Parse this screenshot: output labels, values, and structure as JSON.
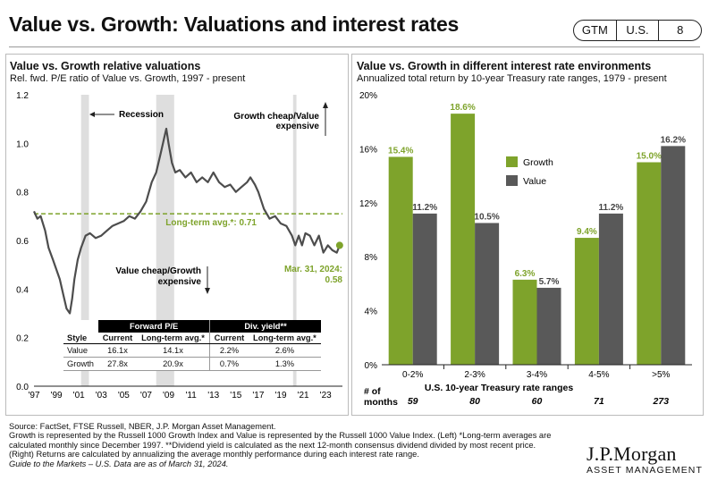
{
  "header": {
    "title": "Value vs. Growth: Valuations and interest rates",
    "badges": [
      "GTM",
      "U.S.",
      "8"
    ]
  },
  "left_panel": {
    "title": "Value vs. Growth relative valuations",
    "subtitle": "Rel. fwd. P/E ratio of Value vs. Growth, 1997 - present"
  },
  "right_panel": {
    "title": "Value vs. Growth in different interest rate environments",
    "subtitle": "Annualized total return by 10-year Treasury rate ranges, 1979 - present",
    "months_label_1": "# of",
    "months_label_2": "months",
    "months": [
      "59",
      "80",
      "60",
      "71",
      "273"
    ]
  },
  "table": {
    "group_forward": "Forward P/E",
    "group_div": "Div. yield**",
    "col_style": "Style",
    "col_current": "Current",
    "col_longterm": "Long-term avg.*",
    "rows": [
      {
        "style": "Value",
        "pe_current": "16.1x",
        "pe_avg": "14.1x",
        "dy_current": "2.2%",
        "dy_avg": "2.6%"
      },
      {
        "style": "Growth",
        "pe_current": "27.8x",
        "pe_avg": "20.9x",
        "dy_current": "0.7%",
        "dy_avg": "1.3%"
      }
    ]
  },
  "footnotes": [
    "Source: FactSet, FTSE Russell, NBER, J.P. Morgan Asset Management.",
    "Growth is represented by the Russell 1000 Growth Index and Value is represented by the Russell 1000 Value Index. (Left) *Long-term averages are",
    "calculated monthly since December 1997. **Dividend yield is calculated as the next 12-month consensus dividend divided by most recent price.",
    "(Right) Returns are calculated by annualizing the average monthly performance during each interest rate range.",
    "Guide to the Markets – U.S. Data are as of March 31, 2024."
  ],
  "logo": {
    "main": "J.P.Morgan",
    "sub": "ASSET MANAGEMENT"
  },
  "colors": {
    "value_line": "#4d4d4d",
    "avg_line": "#7ea32b",
    "growth_bar": "#7ea32b",
    "value_bar": "#595959",
    "recession": "#dedede"
  },
  "chart_data": [
    {
      "type": "line",
      "title": "Value vs. Growth relative valuations",
      "ylim": [
        0.0,
        1.2
      ],
      "yticks": [
        "0.0",
        "0.2",
        "0.4",
        "0.6",
        "0.8",
        "1.0",
        "1.2"
      ],
      "xlim": [
        1997,
        2024.5
      ],
      "xticks": [
        "'97",
        "'99",
        "'01",
        "'03",
        "'05",
        "'07",
        "'09",
        "'11",
        "'13",
        "'15",
        "'17",
        "'19",
        "'21",
        "'23"
      ],
      "recessions": [
        [
          2001.2,
          2001.9
        ],
        [
          2007.9,
          2009.5
        ],
        [
          2020.1,
          2020.4
        ]
      ],
      "long_term_avg": 0.71,
      "long_term_label": "Long-term avg.*: 0.71",
      "last_point_label_1": "Mar. 31, 2024:",
      "last_point_label_2": "0.58",
      "last_value": 0.58,
      "annotations": {
        "recession": "Recession",
        "growth_cheap_1": "Growth cheap/Value",
        "growth_cheap_2": "expensive",
        "value_cheap_1": "Value cheap/Growth",
        "value_cheap_2": "expensive"
      },
      "series": [
        {
          "name": "Rel. fwd. P/E",
          "x": [
            1997.0,
            1997.3,
            1997.6,
            1998.0,
            1998.3,
            1998.7,
            1999.0,
            1999.3,
            1999.6,
            1999.9,
            2000.2,
            2000.4,
            2000.6,
            2000.9,
            2001.2,
            2001.6,
            2002.0,
            2002.5,
            2003.0,
            2003.5,
            2004.0,
            2004.5,
            2005.0,
            2005.5,
            2006.0,
            2006.5,
            2007.0,
            2007.5,
            2007.9,
            2008.3,
            2008.6,
            2008.8,
            2009.0,
            2009.3,
            2009.6,
            2010.0,
            2010.5,
            2011.0,
            2011.5,
            2012.0,
            2012.5,
            2013.0,
            2013.5,
            2014.0,
            2014.5,
            2015.0,
            2015.5,
            2016.0,
            2016.3,
            2016.7,
            2017.0,
            2017.5,
            2018.0,
            2018.5,
            2019.0,
            2019.5,
            2020.0,
            2020.3,
            2020.6,
            2020.9,
            2021.2,
            2021.6,
            2022.0,
            2022.4,
            2022.8,
            2023.2,
            2023.6,
            2024.0,
            2024.25
          ],
          "y": [
            0.72,
            0.69,
            0.7,
            0.64,
            0.57,
            0.52,
            0.48,
            0.44,
            0.38,
            0.32,
            0.3,
            0.36,
            0.44,
            0.52,
            0.57,
            0.62,
            0.63,
            0.61,
            0.62,
            0.64,
            0.66,
            0.67,
            0.68,
            0.7,
            0.69,
            0.72,
            0.76,
            0.84,
            0.88,
            0.96,
            1.02,
            1.06,
            1.0,
            0.92,
            0.88,
            0.89,
            0.86,
            0.88,
            0.84,
            0.86,
            0.84,
            0.88,
            0.84,
            0.82,
            0.83,
            0.8,
            0.82,
            0.84,
            0.86,
            0.83,
            0.8,
            0.73,
            0.69,
            0.7,
            0.67,
            0.66,
            0.62,
            0.58,
            0.62,
            0.58,
            0.63,
            0.62,
            0.58,
            0.62,
            0.55,
            0.58,
            0.56,
            0.55,
            0.58
          ]
        }
      ]
    },
    {
      "type": "bar",
      "title": "Value vs. Growth in different interest rate environments",
      "xlabel": "U.S. 10-year Treasury rate ranges",
      "categories": [
        "0-2%",
        "2-3%",
        "3-4%",
        "4-5%",
        ">5%"
      ],
      "ylim": [
        0,
        20
      ],
      "yticks": [
        "0%",
        "4%",
        "8%",
        "12%",
        "16%",
        "20%"
      ],
      "series": [
        {
          "name": "Growth",
          "values": [
            15.4,
            18.6,
            6.3,
            9.4,
            15.0
          ],
          "labels": [
            "15.4%",
            "18.6%",
            "6.3%",
            "9.4%",
            "15.0%"
          ]
        },
        {
          "name": "Value",
          "values": [
            11.2,
            10.5,
            5.7,
            11.2,
            16.2
          ],
          "labels": [
            "11.2%",
            "10.5%",
            "5.7%",
            "11.2%",
            "16.2%"
          ]
        }
      ]
    }
  ]
}
